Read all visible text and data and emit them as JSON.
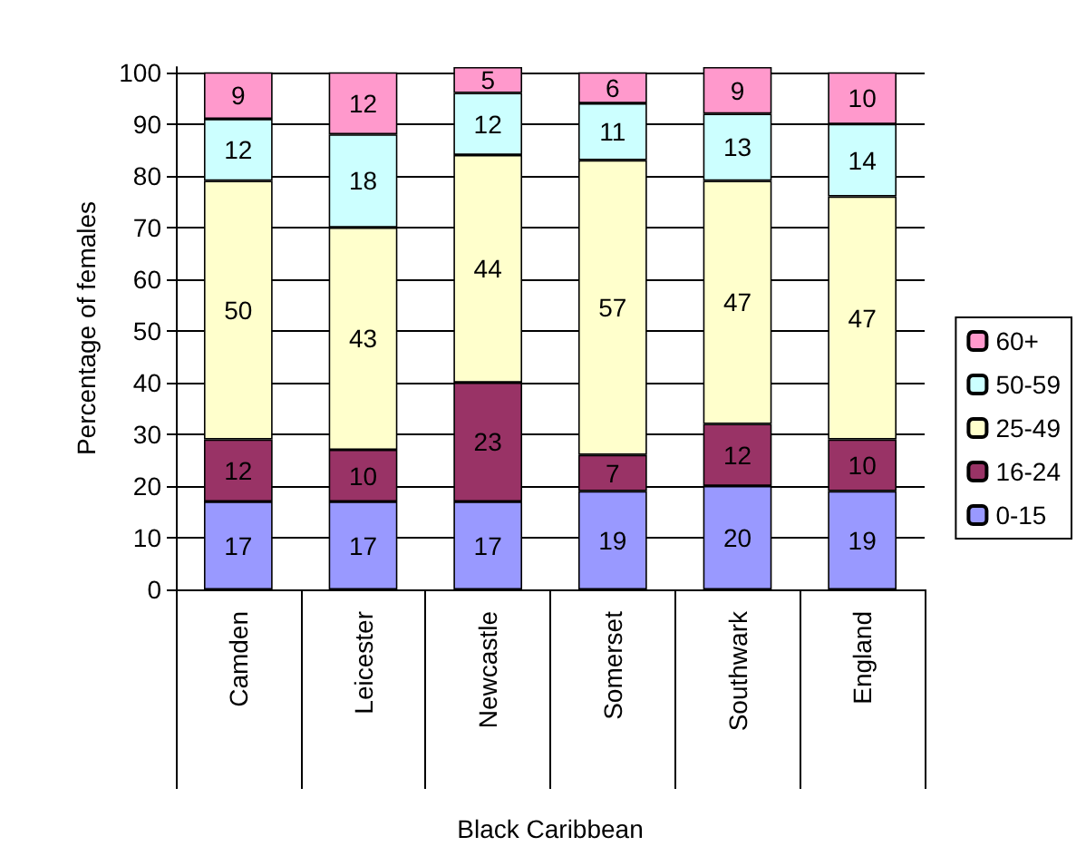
{
  "chart_data": {
    "type": "bar",
    "stacked": true,
    "xlabel": "Black Caribbean",
    "ylabel": "Percentage of females",
    "categories": [
      "Camden",
      "Leicester",
      "Newcastle",
      "Somerset",
      "Southwark",
      "England"
    ],
    "series": [
      {
        "name": "0-15",
        "color": "#9999ff",
        "values": [
          17,
          17,
          17,
          19,
          20,
          19
        ]
      },
      {
        "name": "16-24",
        "color": "#993366",
        "values": [
          12,
          10,
          23,
          7,
          12,
          10
        ]
      },
      {
        "name": "25-49",
        "color": "#ffffcc",
        "values": [
          50,
          43,
          44,
          57,
          47,
          47
        ]
      },
      {
        "name": "50-59",
        "color": "#ccffff",
        "values": [
          12,
          18,
          12,
          11,
          13,
          14
        ]
      },
      {
        "name": "60+",
        "color": "#ff99cc",
        "values": [
          9,
          12,
          5,
          6,
          9,
          10
        ]
      }
    ],
    "ylim": [
      0,
      101
    ],
    "yticks": [
      0,
      10,
      20,
      30,
      40,
      50,
      60,
      70,
      80,
      90,
      100
    ],
    "grid": "y",
    "legend": "right",
    "data_labels": true
  }
}
